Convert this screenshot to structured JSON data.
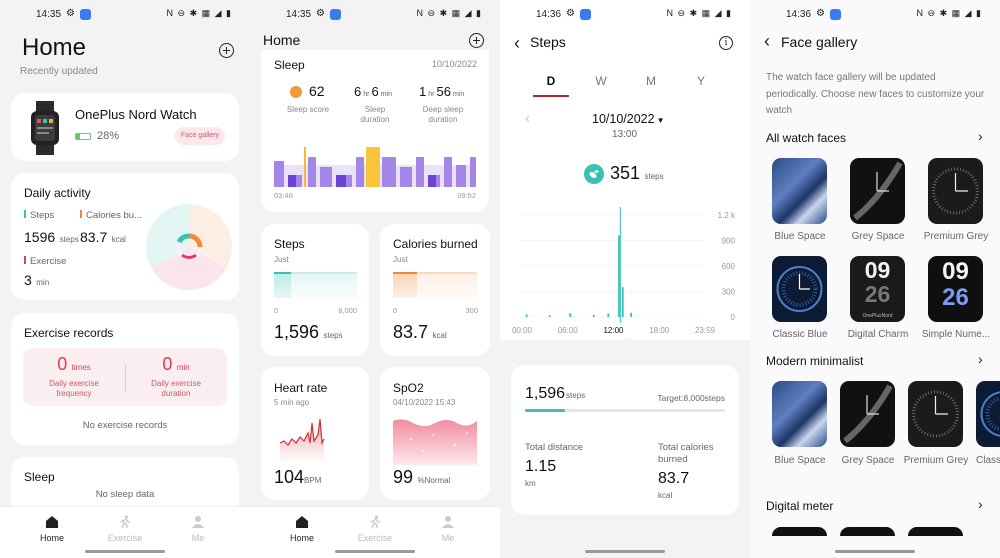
{
  "status": {
    "time1": "14:35",
    "time2": "14:35",
    "time3": "14:36",
    "time4": "14:36"
  },
  "s1": {
    "title": "Home",
    "subtitle": "Recently updated",
    "device_name": "OnePlus Nord Watch",
    "battery": "28%",
    "face_gallery_btn": "Face gallery",
    "daily_activity": "Daily activity",
    "steps_label": "Steps",
    "calories_label": "Calories bu...",
    "steps_val": "1596",
    "steps_unit": "steps",
    "cal_val": "83.7",
    "cal_unit": "kcal",
    "exercise_label": "Exercise",
    "exercise_val": "3",
    "exercise_unit": "min",
    "exercise_records": "Exercise records",
    "freq_val": "0",
    "freq_unit": "times",
    "freq_label": "Daily exercise frequency",
    "dur_val": "0",
    "dur_unit": "min",
    "dur_label": "Daily exercise duration",
    "no_records": "No exercise records",
    "sleep_title": "Sleep",
    "no_sleep": "No sleep data"
  },
  "nav": {
    "home": "Home",
    "exercise": "Exercise",
    "me": "Me"
  },
  "s2": {
    "title": "Home",
    "sleep_title": "Sleep",
    "sleep_date": "10/10/2022",
    "sleep_score": "62",
    "sleep_score_label": "Sleep score",
    "sleep_dur_h": "6",
    "sleep_dur_m": "6",
    "sleep_dur_label": "Sleep duration",
    "deep_h": "1",
    "deep_m": "56",
    "deep_label": "Deep sleep duration",
    "hr_unit": "hr",
    "min_unit": "min",
    "t_start": "03:46",
    "t_end": "09:52",
    "steps_title": "Steps",
    "steps_sub": "Just",
    "steps_min": "0",
    "steps_max": "8,000",
    "steps_val": "1,596",
    "steps_unit": "steps",
    "steps_progress": 0.2,
    "cal_title": "Calories burned",
    "cal_sub": "Just",
    "cal_min": "0",
    "cal_max": "300",
    "cal_val": "83.7",
    "cal_unit": "kcal",
    "cal_progress": 0.28,
    "hr_title": "Heart rate",
    "hr_sub": "5 min ago",
    "hr_val": "104",
    "hr_unit2": "BPM",
    "spo2_title": "SpO2",
    "spo2_sub": "04/10/2022 15:43",
    "spo2_val": "99",
    "spo2_unit": "%",
    "spo2_status": "Normal"
  },
  "s3": {
    "title": "Steps",
    "tabs": [
      "D",
      "W",
      "M",
      "Y"
    ],
    "date": "10/10/2022",
    "time": "13:00",
    "value": "351",
    "value_unit": "steps",
    "y_ticks": [
      "1.2 k",
      "900",
      "600",
      "300",
      "0"
    ],
    "x_ticks": [
      "00:00",
      "06:00",
      "12:00",
      "18:00",
      "23:59"
    ],
    "summary_steps": "1,596",
    "summary_unit": "steps",
    "target": "Target:8,000steps",
    "progress": 0.2,
    "dist_label": "Total distance",
    "dist_val": "1.15",
    "dist_unit": "km",
    "cal_label": "Total calories burned",
    "cal_val": "83.7",
    "cal_unit": "kcal"
  },
  "s4": {
    "title": "Face gallery",
    "intro": "The watch face gallery will be updated periodically. Choose new faces to customize your watch",
    "sec1": "All watch faces",
    "faces1": [
      "Blue Space",
      "Grey Space",
      "Premium Grey",
      "Classic Blue",
      "Digital Charm",
      "Simple Nume..."
    ],
    "digits": [
      "09",
      "26",
      "09",
      "26"
    ],
    "brand": "OnePlusNord",
    "sec2": "Modern minimalist",
    "faces2": [
      "Blue Space",
      "Grey Space",
      "Premium Grey",
      "Class"
    ],
    "sec3": "Digital meter"
  }
}
